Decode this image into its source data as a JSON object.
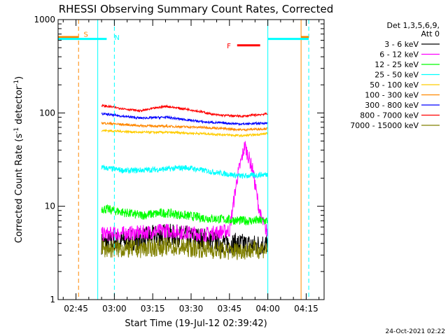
{
  "chart_data": {
    "type": "line",
    "title": "RHESSI Observing Summary Count Rates, Corrected",
    "xlabel": "Start Time (19-Jul-12 02:39:42)",
    "ylabel": "Corrected Count Rate (s⁻¹ detector⁻¹)",
    "ylabel_parts": [
      "Corrected Count Rate (s",
      "-1",
      " detector",
      "-1",
      ")"
    ],
    "x_tick_labels": [
      "02:45",
      "03:00",
      "03:15",
      "03:30",
      "03:45",
      "04:00",
      "04:15"
    ],
    "x_ticks_min": [
      45,
      60,
      75,
      90,
      105,
      120,
      135
    ],
    "x_minor_step_min": 5,
    "xlim_min": [
      38,
      142
    ],
    "y_scale": "log",
    "ylim": [
      1,
      1000
    ],
    "y_tick_labels": [
      "1",
      "10",
      "100",
      "1000"
    ],
    "y_ticks": [
      1,
      10,
      100,
      1000
    ],
    "legend_header": [
      "Det 1,3,5,6,9,",
      "Att 0"
    ],
    "series": [
      {
        "name": "3 - 6 keV",
        "color": "#000000",
        "start": 55,
        "end": 120,
        "noise": 0.12,
        "points": [
          [
            55,
            4
          ],
          [
            70,
            4.5
          ],
          [
            80,
            5
          ],
          [
            95,
            4.5
          ],
          [
            105,
            4
          ],
          [
            115,
            3.8
          ],
          [
            120,
            4
          ]
        ]
      },
      {
        "name": "6 - 12 keV",
        "color": "#ff00ff",
        "start": 55,
        "end": 120,
        "noise": 0.08,
        "points": [
          [
            55,
            5
          ],
          [
            70,
            5.2
          ],
          [
            80,
            5.5
          ],
          [
            95,
            5
          ],
          [
            105,
            5.5
          ],
          [
            108,
            20
          ],
          [
            111,
            45
          ],
          [
            114,
            25
          ],
          [
            117,
            8
          ],
          [
            120,
            5
          ]
        ]
      },
      {
        "name": "12 - 25 keV",
        "color": "#00ff00",
        "start": 55,
        "end": 120,
        "noise": 0.05,
        "points": [
          [
            55,
            9.5
          ],
          [
            70,
            8
          ],
          [
            80,
            8.5
          ],
          [
            95,
            7.5
          ],
          [
            110,
            7
          ],
          [
            120,
            7
          ]
        ]
      },
      {
        "name": "25 - 50 keV",
        "color": "#00ffff",
        "start": 55,
        "end": 120,
        "noise": 0.03,
        "points": [
          [
            55,
            26
          ],
          [
            65,
            24
          ],
          [
            80,
            25
          ],
          [
            88,
            26
          ],
          [
            100,
            23
          ],
          [
            110,
            21
          ],
          [
            120,
            22
          ]
        ]
      },
      {
        "name": "50 - 100 keV",
        "color": "#ffcc00",
        "start": 55,
        "end": 120,
        "noise": 0.012,
        "points": [
          [
            55,
            65
          ],
          [
            70,
            62
          ],
          [
            80,
            62
          ],
          [
            95,
            60
          ],
          [
            110,
            57
          ],
          [
            120,
            60
          ]
        ]
      },
      {
        "name": "100 - 300 keV",
        "color": "#ff8800",
        "start": 55,
        "end": 120,
        "noise": 0.012,
        "points": [
          [
            55,
            78
          ],
          [
            70,
            73
          ],
          [
            80,
            72
          ],
          [
            95,
            70
          ],
          [
            110,
            66
          ],
          [
            120,
            68
          ]
        ]
      },
      {
        "name": "300 - 800 keV",
        "color": "#0000ff",
        "start": 55,
        "end": 120,
        "noise": 0.012,
        "points": [
          [
            55,
            98
          ],
          [
            70,
            88
          ],
          [
            80,
            90
          ],
          [
            95,
            80
          ],
          [
            110,
            76
          ],
          [
            120,
            78
          ]
        ]
      },
      {
        "name": "800 - 7000 keV",
        "color": "#ff0000",
        "start": 55,
        "end": 120,
        "noise": 0.012,
        "points": [
          [
            55,
            120
          ],
          [
            70,
            105
          ],
          [
            80,
            118
          ],
          [
            90,
            108
          ],
          [
            100,
            95
          ],
          [
            110,
            92
          ],
          [
            120,
            98
          ]
        ]
      },
      {
        "name": "7000 - 15000 keV",
        "color": "#808000",
        "start": 55,
        "end": 120,
        "noise": 0.1,
        "points": [
          [
            55,
            3.5
          ],
          [
            70,
            3.5
          ],
          [
            80,
            3.7
          ],
          [
            95,
            3.5
          ],
          [
            105,
            3.3
          ],
          [
            120,
            3.5
          ]
        ]
      }
    ],
    "markers": [
      {
        "label": "S",
        "color": "#ff8800",
        "bar_y": 650,
        "label_y": 700,
        "bar": [
          [
            38,
            46
          ],
          [
            133,
            136
          ]
        ],
        "label_x": 48
      },
      {
        "label": "N",
        "color": "#00ffff",
        "bar_y": 620,
        "label_y": 650,
        "bar": [
          [
            38,
            57
          ],
          [
            120,
            136
          ]
        ],
        "label_x": 60
      },
      {
        "label": "F",
        "color": "#ff0000",
        "bar_y": 530,
        "label_y": 530,
        "bar": [
          [
            108,
            117
          ]
        ],
        "label_x": 104
      }
    ],
    "vertical_lines": [
      {
        "x": 46,
        "color": "#ff8800",
        "style": "dash"
      },
      {
        "x": 53.5,
        "color": "#00ffff",
        "style": "solid"
      },
      {
        "x": 60,
        "color": "#00ffff",
        "style": "dash"
      },
      {
        "x": 120,
        "color": "#00ffff",
        "style": "solid"
      },
      {
        "x": 133,
        "color": "#ff8800",
        "style": "solid"
      },
      {
        "x": 136,
        "color": "#00ffff",
        "style": "dash"
      }
    ],
    "grid": false,
    "legend_position": "right"
  },
  "footer": {
    "timestamp": "24-Oct-2021 02:22"
  }
}
